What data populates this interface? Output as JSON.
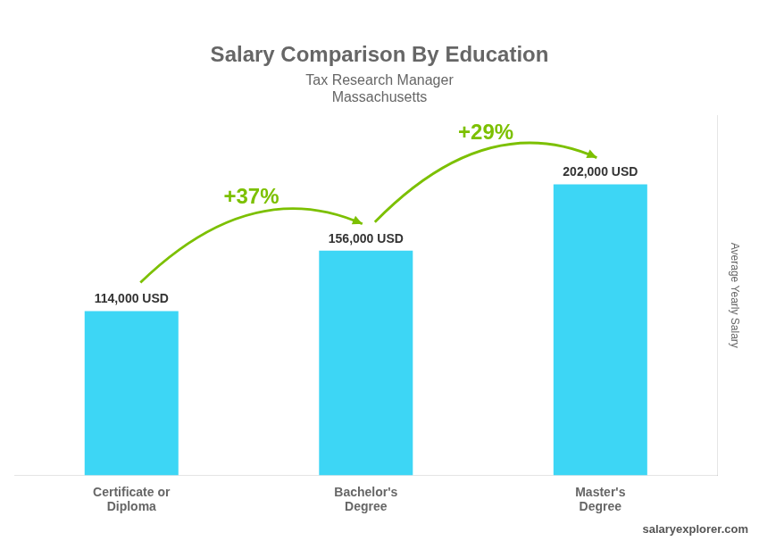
{
  "chart_data": {
    "type": "bar",
    "title": "Salary Comparison By Education",
    "subtitle": [
      "Tax Research Manager",
      "Massachusetts"
    ],
    "ylabel": "Average Yearly Salary",
    "categories": [
      "Certificate or\nDiploma",
      "Bachelor's\nDegree",
      "Master's\nDegree"
    ],
    "values": [
      114000,
      156000,
      202000
    ],
    "value_labels": [
      "114,000 USD",
      "156,000 USD",
      "202,000 USD"
    ],
    "data_labels": true,
    "annotations": [
      "+37%",
      "+29%"
    ],
    "source": "salaryexplorer.com",
    "color": "#3dd6f5",
    "ylim": [
      0,
      250000
    ],
    "grid": false,
    "tick_labels": "x"
  }
}
